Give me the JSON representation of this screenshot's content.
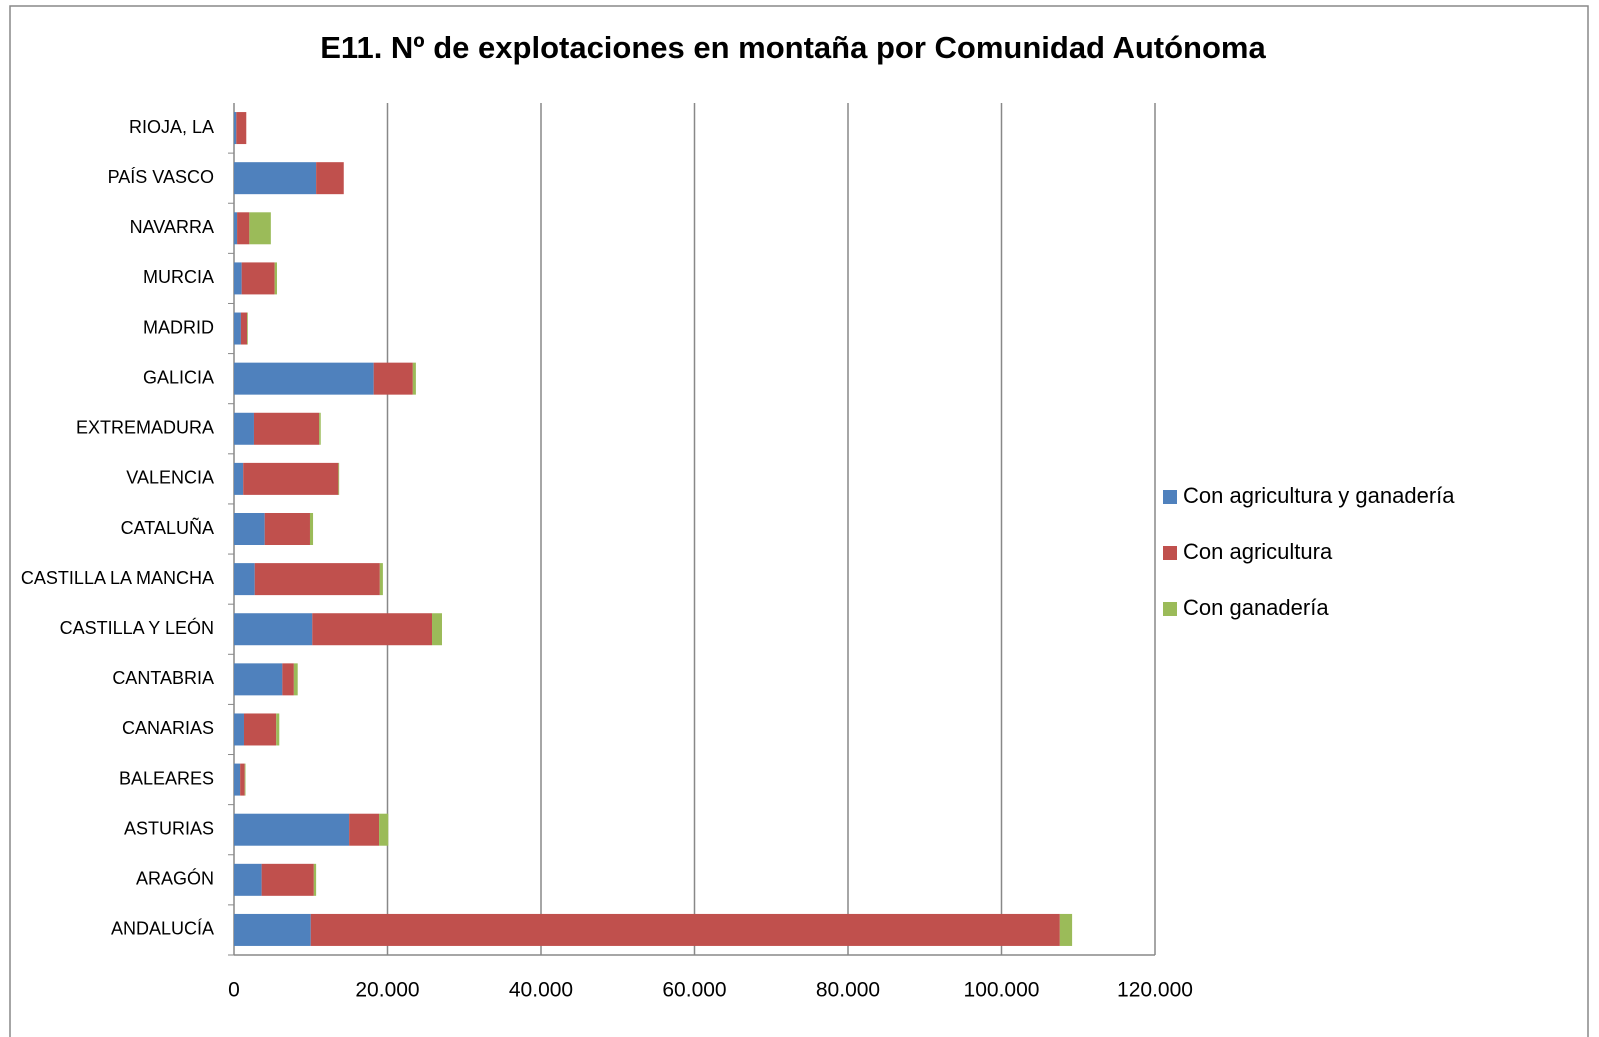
{
  "chart_data": {
    "type": "stacked_horizontal_bar",
    "title": "E11. Nº de explotaciones en montaña por Comunidad Autónoma",
    "categories": [
      "ANDALUCÍA",
      "ARAGÓN",
      "ASTURIAS",
      "BALEARES",
      "CANARIAS",
      "CANTABRIA",
      "CASTILLA Y LEÓN",
      "CASTILLA LA MANCHA",
      "CATALUÑA",
      "VALENCIA",
      "EXTREMADURA",
      "GALICIA",
      "MADRID",
      "MURCIA",
      "NAVARRA",
      "PAÍS VASCO",
      "RIOJA, LA"
    ],
    "series": [
      {
        "name": "Con agricultura y ganadería",
        "color": "#4f81bd",
        "values": [
          10000,
          3600,
          15000,
          800,
          1300,
          6300,
          10200,
          2700,
          4000,
          1200,
          2600,
          18200,
          900,
          1000,
          400,
          10700,
          300
        ]
      },
      {
        "name": "Con agricultura",
        "color": "#c0504d",
        "values": [
          97600,
          6800,
          3900,
          600,
          4200,
          1500,
          15600,
          16300,
          5900,
          12400,
          8500,
          5100,
          800,
          4300,
          1600,
          3600,
          1300
        ]
      },
      {
        "name": "Con ganadería",
        "color": "#9bbb59",
        "values": [
          1600,
          300,
          1200,
          100,
          400,
          500,
          1300,
          400,
          400,
          100,
          200,
          400,
          100,
          300,
          2800,
          0,
          0
        ]
      }
    ],
    "xlim": [
      0,
      120000
    ],
    "xticks": [
      0,
      {
        "value": 20000,
        "label": "20.000"
      },
      {
        "value": 40000,
        "label": "40.000"
      },
      {
        "value": 60000,
        "label": "60.000"
      },
      {
        "value": 80000,
        "label": "80.000"
      },
      {
        "value": 100000,
        "label": "100.000"
      },
      {
        "value": 120000,
        "label": "120.000"
      }
    ],
    "grid": true,
    "legend": "right"
  }
}
